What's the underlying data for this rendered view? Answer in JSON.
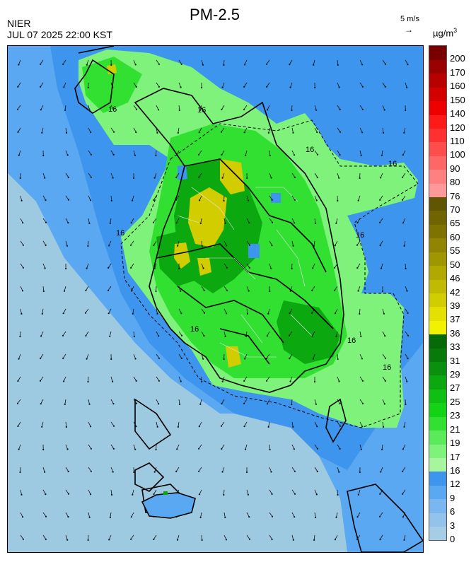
{
  "header": {
    "title": "PM-2.5",
    "agency": "NIER",
    "datetime": "JUL 07 2025 22:00 KST",
    "wind_scale_label": "5 m/s",
    "wind_scale_arrow": "→",
    "unit": "µg/m",
    "unit_sup": "3"
  },
  "legend": {
    "bins": [
      {
        "label": "0",
        "color": "#a6cde6"
      },
      {
        "label": "3",
        "color": "#93c2eb"
      },
      {
        "label": "6",
        "color": "#7ab7f0"
      },
      {
        "label": "9",
        "color": "#5aa8f2"
      },
      {
        "label": "12",
        "color": "#3d95ee"
      },
      {
        "label": "16",
        "color": "#a8f5a0"
      },
      {
        "label": "17",
        "color": "#7ff27c"
      },
      {
        "label": "19",
        "color": "#5bea5a"
      },
      {
        "label": "21",
        "color": "#32e032"
      },
      {
        "label": "23",
        "color": "#12d414"
      },
      {
        "label": "25",
        "color": "#0fc012"
      },
      {
        "label": "27",
        "color": "#0ca80f"
      },
      {
        "label": "29",
        "color": "#0a900d"
      },
      {
        "label": "31",
        "color": "#08790b"
      },
      {
        "label": "33",
        "color": "#066a08"
      },
      {
        "label": "36",
        "color": "#f2f200"
      },
      {
        "label": "37",
        "color": "#e4e000"
      },
      {
        "label": "39",
        "color": "#d2cd00"
      },
      {
        "label": "42",
        "color": "#c2ba00"
      },
      {
        "label": "46",
        "color": "#b1a800"
      },
      {
        "label": "50",
        "color": "#a09600"
      },
      {
        "label": "55",
        "color": "#908400"
      },
      {
        "label": "60",
        "color": "#7f7300"
      },
      {
        "label": "65",
        "color": "#706400"
      },
      {
        "label": "70",
        "color": "#605500"
      },
      {
        "label": "76",
        "color": "#ff9999"
      },
      {
        "label": "80",
        "color": "#ff8080"
      },
      {
        "label": "90",
        "color": "#ff6666"
      },
      {
        "label": "100",
        "color": "#ff4d4d"
      },
      {
        "label": "110",
        "color": "#ff3030"
      },
      {
        "label": "120",
        "color": "#ff1a1a"
      },
      {
        "label": "140",
        "color": "#ee0000"
      },
      {
        "label": "150",
        "color": "#d40000"
      },
      {
        "label": "160",
        "color": "#b80000"
      },
      {
        "label": "170",
        "color": "#9a0000"
      },
      {
        "label": "200",
        "color": "#7a0000"
      }
    ]
  },
  "map": {
    "contour_labels": [
      "16",
      "16",
      "16",
      "16",
      "16",
      "16",
      "16",
      "16",
      "16"
    ],
    "colors": {
      "sea": "#9ecae1",
      "coastal": "#5aa8f2",
      "near": "#3d95ee",
      "land_low": "#7ff27c",
      "land_mid": "#32e032",
      "land_high": "#0ca80f",
      "hotspot": "#d2cd00",
      "boundary": "#000000"
    }
  }
}
